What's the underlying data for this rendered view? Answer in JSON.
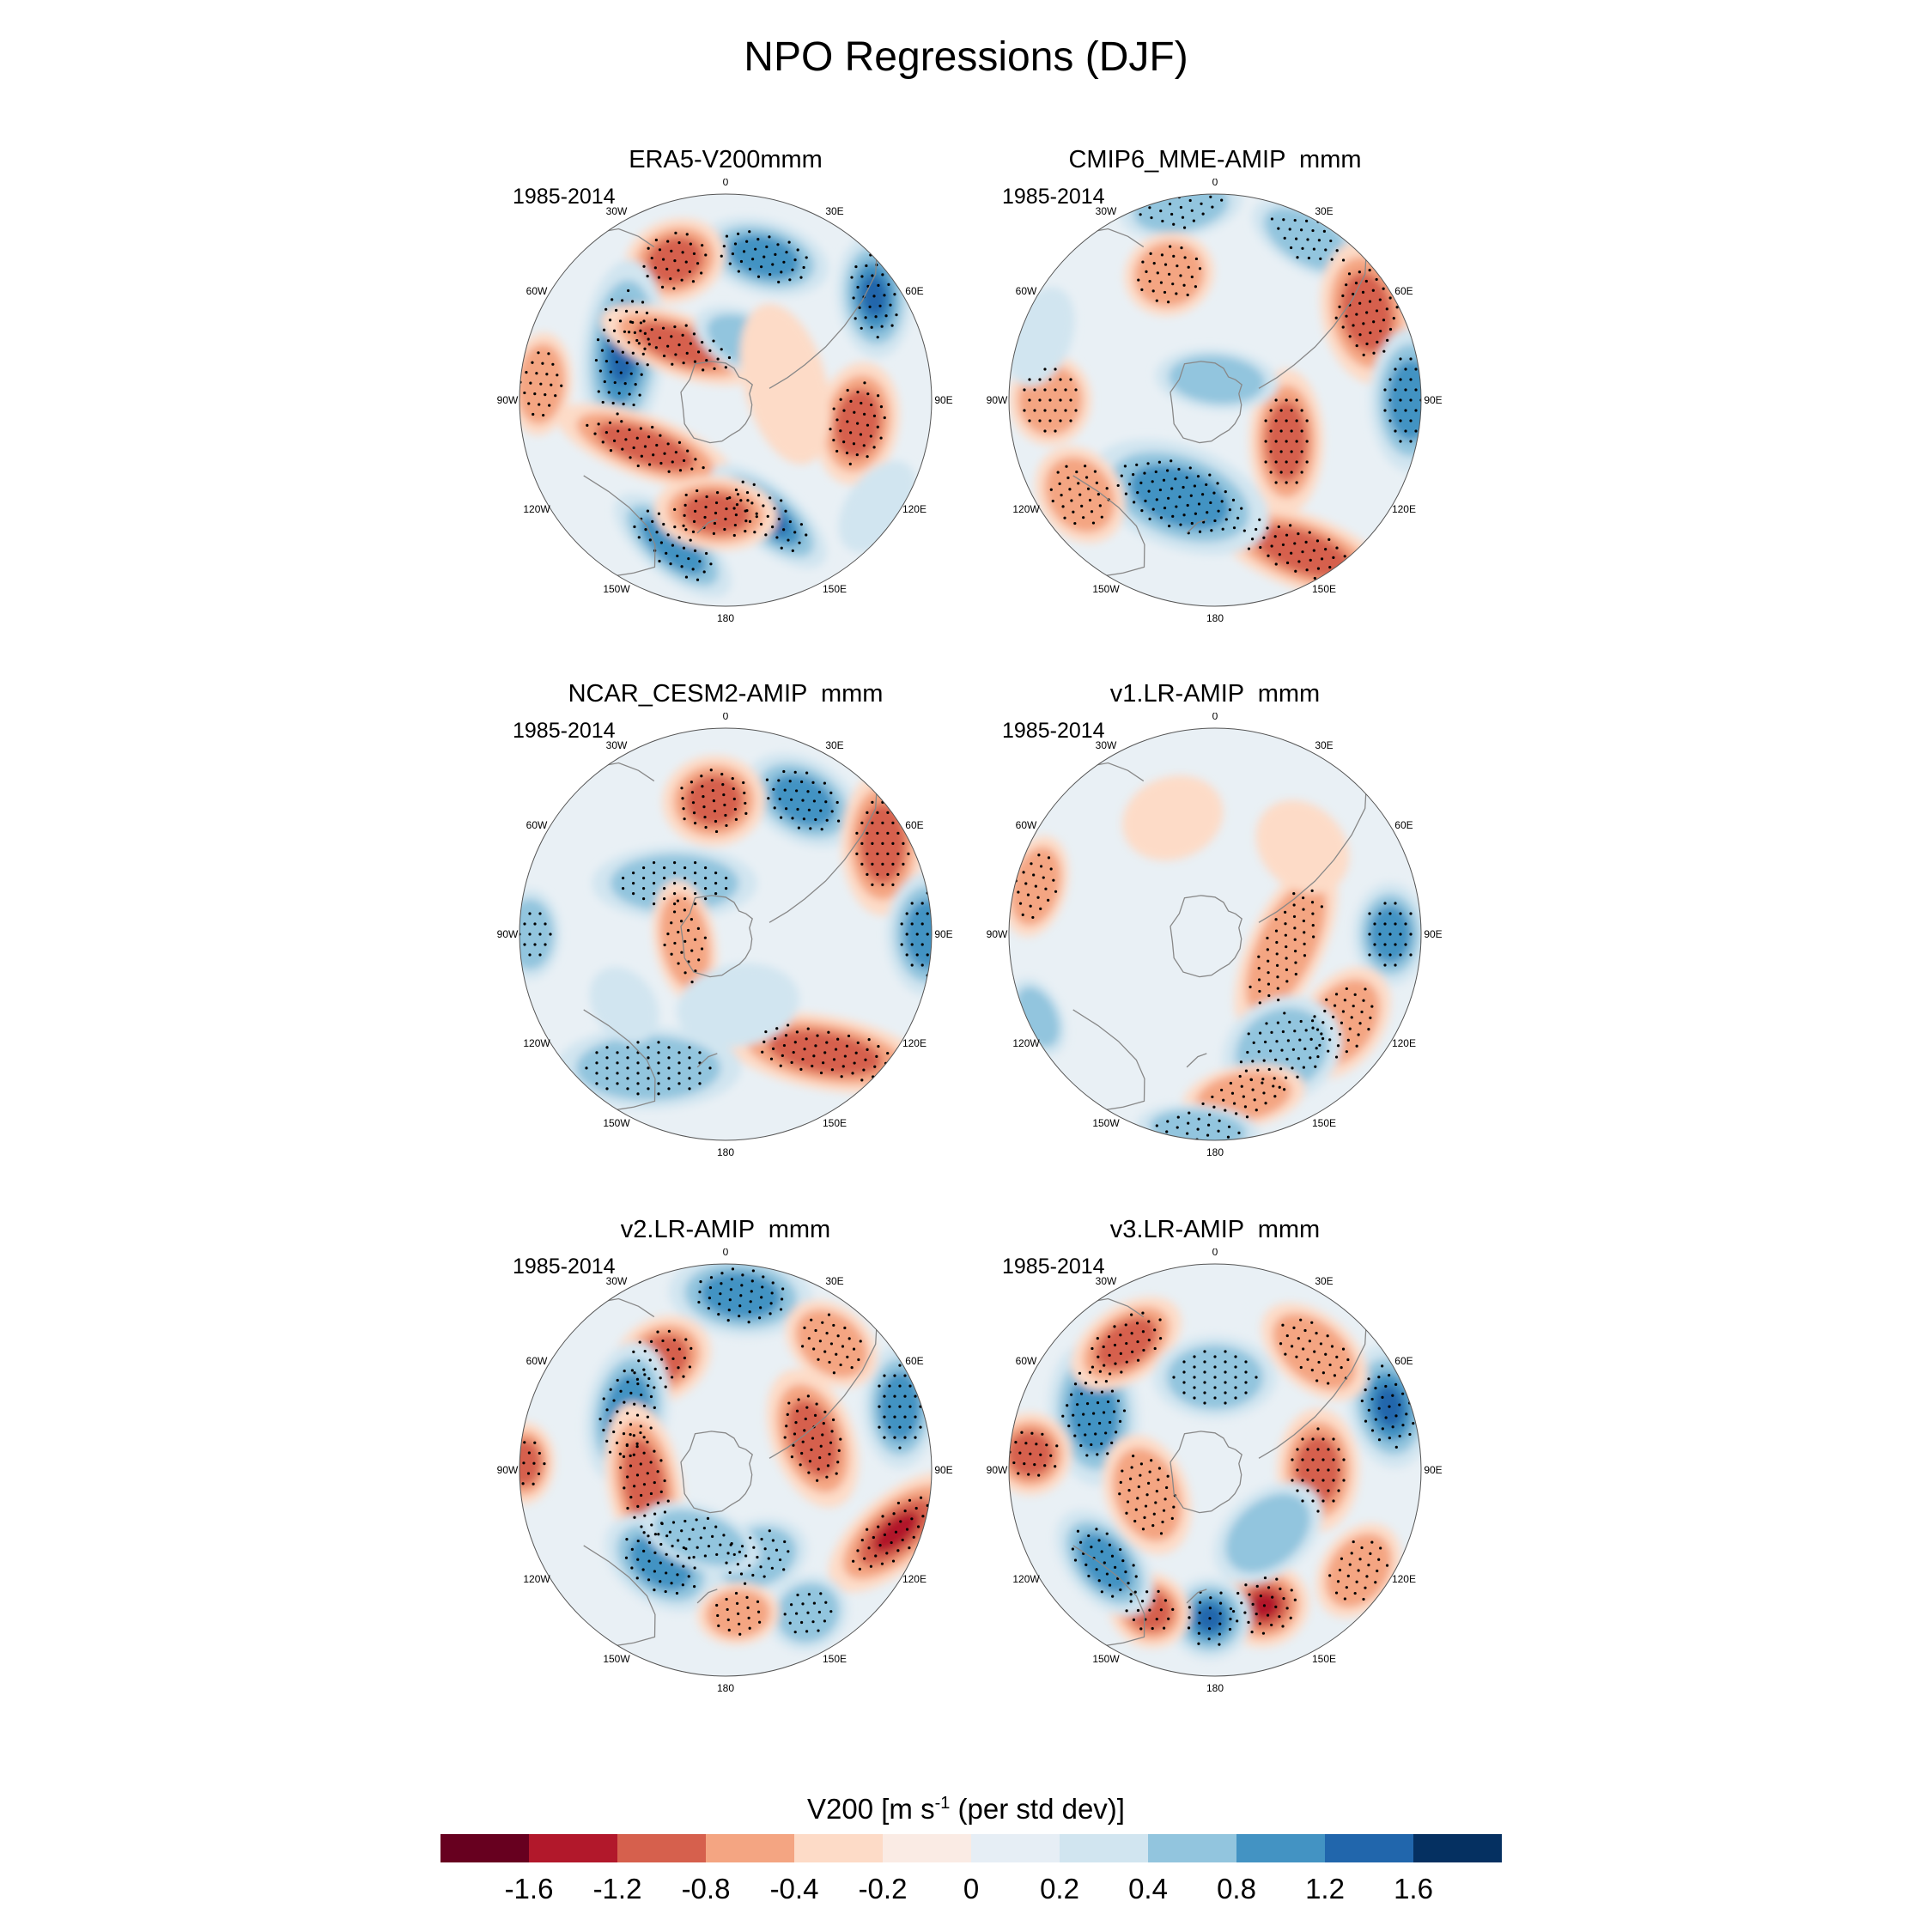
{
  "title": "NPO Regressions (DJF)",
  "period": "1985-2014",
  "lon_labels": [
    "0",
    "30E",
    "60E",
    "90E",
    "120E",
    "150E",
    "180",
    "150W",
    "120W",
    "90W",
    "60W",
    "30W"
  ],
  "panels": [
    {
      "title": "ERA5-V200mmm",
      "period": "1985-2014"
    },
    {
      "title": "CMIP6_MME-AMIP  mmm",
      "period": "1985-2014"
    },
    {
      "title": "NCAR_CESM2-AMIP  mmm",
      "period": "1985-2014"
    },
    {
      "title": "v1.LR-AMIP  mmm",
      "period": "1985-2014"
    },
    {
      "title": "v2.LR-AMIP  mmm",
      "period": "1985-2014"
    },
    {
      "title": "v3.LR-AMIP  mmm",
      "period": "1985-2014"
    }
  ],
  "colorbar": {
    "label_main": "V200 [m s",
    "label_sup": "-1",
    "label_tail": " (per std dev)]",
    "colors": [
      "#67001f",
      "#b2182b",
      "#d6604d",
      "#f4a582",
      "#fddbc7",
      "#faebe4",
      "#e6eef5",
      "#d1e5f0",
      "#92c5de",
      "#4393c3",
      "#2166ac",
      "#053061"
    ],
    "ticks": [
      "-1.6",
      "-1.2",
      "-0.8",
      "-0.4",
      "-0.2",
      "0",
      "0.2",
      "0.4",
      "0.8",
      "1.2",
      "1.6"
    ]
  },
  "colors": {
    "strong_red": "#b2182b",
    "red": "#d6604d",
    "light_red": "#f4a582",
    "pale_red": "#fddbc7",
    "pale_blue": "#d1e5f0",
    "light_blue": "#92c5de",
    "blue": "#4393c3",
    "strong_blue": "#2166ac",
    "ocean_base": "#e9f0f5",
    "coast": "#888888"
  },
  "anomalies": [
    [
      {
        "lon": -15,
        "r": 0.72,
        "a": 0.32,
        "b": 0.18,
        "rot": 0,
        "v": -1.0
      },
      {
        "lon": 20,
        "r": 0.72,
        "a": 0.25,
        "b": 0.2,
        "rot": 0,
        "v": 1.1
      },
      {
        "lon": -55,
        "r": 0.88,
        "a": 0.3,
        "b": 0.18,
        "rot": 30,
        "v": -1.2
      },
      {
        "lon": 65,
        "r": 0.55,
        "a": 0.45,
        "b": 0.2,
        "rot": -20,
        "v": -1.3
      },
      {
        "lon": -100,
        "r": 0.65,
        "a": 0.3,
        "b": 0.2,
        "rot": 0,
        "v": 0.9
      },
      {
        "lon": 120,
        "r": 0.45,
        "a": 0.45,
        "b": 0.15,
        "rot": -40,
        "v": 0.9
      },
      {
        "lon": -160,
        "r": 0.6,
        "a": 0.35,
        "b": 0.15,
        "rot": 60,
        "v": -1.2
      },
      {
        "lon": 160,
        "r": 0.75,
        "a": 0.35,
        "b": 0.15,
        "rot": 20,
        "v": -1.0
      },
      {
        "lon": 175,
        "r": 0.55,
        "a": 0.3,
        "b": 0.18,
        "rot": 0,
        "v": 0.8
      },
      {
        "lon": 40,
        "r": 0.35,
        "a": 0.4,
        "b": 0.15,
        "rot": 60,
        "v": 1.1
      },
      {
        "lon": -25,
        "r": 0.3,
        "a": 0.3,
        "b": 0.15,
        "rot": 0,
        "v": -0.4
      },
      {
        "lon": -75,
        "r": 0.3,
        "a": 0.4,
        "b": 0.2,
        "rot": 0,
        "v": 0.3
      },
      {
        "lon": 85,
        "r": 0.9,
        "a": 0.25,
        "b": 0.15,
        "rot": 0,
        "v": 0.6
      },
      {
        "lon": -125,
        "r": 0.9,
        "a": 0.25,
        "b": 0.15,
        "rot": 0,
        "v": -0.3
      }
    ],
    [
      {
        "lon": -30,
        "r": 0.9,
        "a": 0.3,
        "b": 0.15,
        "rot": 0,
        "v": -0.6
      },
      {
        "lon": 10,
        "r": 0.95,
        "a": 0.3,
        "b": 0.15,
        "rot": 0,
        "v": -0.5
      },
      {
        "lon": 20,
        "r": 0.65,
        "a": 0.22,
        "b": 0.2,
        "rot": 0,
        "v": 0.5
      },
      {
        "lon": -60,
        "r": 0.85,
        "a": 0.35,
        "b": 0.22,
        "rot": 20,
        "v": 1.0
      },
      {
        "lon": -90,
        "r": 0.95,
        "a": 0.35,
        "b": 0.2,
        "rot": 0,
        "v": -0.9
      },
      {
        "lon": -120,
        "r": 0.4,
        "a": 0.35,
        "b": 0.18,
        "rot": -30,
        "v": 0.9
      },
      {
        "lon": -150,
        "r": 0.85,
        "a": 0.45,
        "b": 0.18,
        "rot": 50,
        "v": 1.0
      },
      {
        "lon": 160,
        "r": 0.5,
        "a": 0.45,
        "b": 0.25,
        "rot": 0,
        "v": -0.8
      },
      {
        "lon": 125,
        "r": 0.8,
        "a": 0.25,
        "b": 0.2,
        "rot": 0,
        "v": 0.6
      },
      {
        "lon": 90,
        "r": 0.8,
        "a": 0.22,
        "b": 0.2,
        "rot": 0,
        "v": 0.5
      },
      {
        "lon": -5,
        "r": 0.1,
        "a": 0.3,
        "b": 0.15,
        "rot": 0,
        "v": -0.4
      },
      {
        "lon": 70,
        "r": 0.9,
        "a": 0.25,
        "b": 0.15,
        "rot": 0,
        "v": -0.3
      }
    ],
    [
      {
        "lon": -30,
        "r": 0.75,
        "a": 0.3,
        "b": 0.2,
        "rot": 0,
        "v": -0.8
      },
      {
        "lon": 5,
        "r": 0.65,
        "a": 0.25,
        "b": 0.22,
        "rot": 0,
        "v": 0.8
      },
      {
        "lon": -60,
        "r": 0.88,
        "a": 0.35,
        "b": 0.2,
        "rot": 30,
        "v": 0.8
      },
      {
        "lon": -90,
        "r": 0.98,
        "a": 0.3,
        "b": 0.2,
        "rot": 0,
        "v": -0.9
      },
      {
        "lon": 45,
        "r": 0.35,
        "a": 0.4,
        "b": 0.18,
        "rot": 45,
        "v": -0.6
      },
      {
        "lon": 100,
        "r": 0.2,
        "a": 0.3,
        "b": 0.15,
        "rot": 0,
        "v": 0.6
      },
      {
        "lon": -140,
        "r": 0.75,
        "a": 0.5,
        "b": 0.18,
        "rot": 50,
        "v": 0.8
      },
      {
        "lon": 150,
        "r": 0.75,
        "a": 0.45,
        "b": 0.2,
        "rot": -30,
        "v": -0.5
      },
      {
        "lon": 90,
        "r": 0.95,
        "a": 0.22,
        "b": 0.15,
        "rot": 0,
        "v": -0.5
      },
      {
        "lon": -170,
        "r": 0.35,
        "a": 0.3,
        "b": 0.2,
        "rot": 0,
        "v": -0.3
      },
      {
        "lon": 125,
        "r": 0.6,
        "a": 0.2,
        "b": 0.15,
        "rot": 0,
        "v": -0.3
      }
    ],
    [
      {
        "lon": -90,
        "r": 0.85,
        "a": 0.25,
        "b": 0.18,
        "rot": 0,
        "v": -0.9
      },
      {
        "lon": -100,
        "r": 0.35,
        "a": 0.45,
        "b": 0.18,
        "rot": 15,
        "v": 0.7
      },
      {
        "lon": -125,
        "r": 0.75,
        "a": 0.3,
        "b": 0.2,
        "rot": 0,
        "v": 0.6
      },
      {
        "lon": -150,
        "r": 0.65,
        "a": 0.3,
        "b": 0.25,
        "rot": 0,
        "v": -0.7
      },
      {
        "lon": -170,
        "r": 0.8,
        "a": 0.3,
        "b": 0.15,
        "rot": 0,
        "v": 0.6
      },
      {
        "lon": 175,
        "r": 0.95,
        "a": 0.3,
        "b": 0.12,
        "rot": 0,
        "v": -0.5
      },
      {
        "lon": 75,
        "r": 0.9,
        "a": 0.25,
        "b": 0.15,
        "rot": 0,
        "v": 0.6
      },
      {
        "lon": 20,
        "r": 0.6,
        "a": 0.25,
        "b": 0.2,
        "rot": 0,
        "v": 0.3
      },
      {
        "lon": -45,
        "r": 0.6,
        "a": 0.25,
        "b": 0.2,
        "rot": 0,
        "v": 0.3
      },
      {
        "lon": 115,
        "r": 0.95,
        "a": 0.2,
        "b": 0.12,
        "rot": 0,
        "v": -0.4
      }
    ],
    [
      {
        "lon": -5,
        "r": 0.85,
        "a": 0.35,
        "b": 0.2,
        "rot": 0,
        "v": -0.8
      },
      {
        "lon": 30,
        "r": 0.62,
        "a": 0.25,
        "b": 0.2,
        "rot": 0,
        "v": 0.8
      },
      {
        "lon": -70,
        "r": 0.9,
        "a": 0.3,
        "b": 0.18,
        "rot": 20,
        "v": -1.0
      },
      {
        "lon": -110,
        "r": 0.88,
        "a": 0.4,
        "b": 0.18,
        "rot": 30,
        "v": 1.3
      },
      {
        "lon": -70,
        "r": 0.45,
        "a": 0.35,
        "b": 0.2,
        "rot": 0,
        "v": 0.9
      },
      {
        "lon": 60,
        "r": 0.55,
        "a": 0.35,
        "b": 0.2,
        "rot": -20,
        "v": -0.9
      },
      {
        "lon": 100,
        "r": 0.4,
        "a": 0.4,
        "b": 0.18,
        "rot": 0,
        "v": 0.9
      },
      {
        "lon": 145,
        "r": 0.55,
        "a": 0.3,
        "b": 0.2,
        "rot": 0,
        "v": -0.9
      },
      {
        "lon": -160,
        "r": 0.45,
        "a": 0.25,
        "b": 0.18,
        "rot": 0,
        "v": -0.5
      },
      {
        "lon": -150,
        "r": 0.8,
        "a": 0.2,
        "b": 0.18,
        "rot": 0,
        "v": -0.5
      },
      {
        "lon": -175,
        "r": 0.7,
        "a": 0.2,
        "b": 0.15,
        "rot": 0,
        "v": 0.6
      },
      {
        "lon": 160,
        "r": 0.35,
        "a": 0.3,
        "b": 0.15,
        "rot": 0,
        "v": -0.5
      },
      {
        "lon": -40,
        "r": 0.8,
        "a": 0.25,
        "b": 0.18,
        "rot": 0,
        "v": 0.6
      },
      {
        "lon": 88,
        "r": 0.98,
        "a": 0.2,
        "b": 0.15,
        "rot": 0,
        "v": 0.9
      }
    ],
    [
      {
        "lon": -70,
        "r": 0.9,
        "a": 0.3,
        "b": 0.2,
        "rot": 10,
        "v": -1.5
      },
      {
        "lon": -90,
        "r": 0.5,
        "a": 0.3,
        "b": 0.2,
        "rot": 0,
        "v": 0.8
      },
      {
        "lon": -160,
        "r": 0.7,
        "a": 0.22,
        "b": 0.2,
        "rot": 0,
        "v": 1.6
      },
      {
        "lon": 178,
        "r": 0.72,
        "a": 0.2,
        "b": 0.2,
        "rot": 0,
        "v": -1.6
      },
      {
        "lon": 155,
        "r": 0.75,
        "a": 0.2,
        "b": 0.18,
        "rot": 0,
        "v": 1.1
      },
      {
        "lon": 130,
        "r": 0.7,
        "a": 0.3,
        "b": 0.18,
        "rot": 0,
        "v": -0.8
      },
      {
        "lon": 65,
        "r": 0.65,
        "a": 0.35,
        "b": 0.22,
        "rot": -30,
        "v": -1.0
      },
      {
        "lon": 35,
        "r": 0.75,
        "a": 0.3,
        "b": 0.18,
        "rot": 0,
        "v": 1.0
      },
      {
        "lon": 0,
        "r": 0.45,
        "a": 0.3,
        "b": 0.2,
        "rot": 0,
        "v": -0.6
      },
      {
        "lon": -40,
        "r": 0.75,
        "a": 0.3,
        "b": 0.18,
        "rot": 0,
        "v": 0.6
      },
      {
        "lon": 110,
        "r": 0.35,
        "a": 0.3,
        "b": 0.2,
        "rot": 0,
        "v": 0.6
      },
      {
        "lon": -125,
        "r": 0.85,
        "a": 0.25,
        "b": 0.18,
        "rot": 0,
        "v": 0.6
      },
      {
        "lon": -140,
        "r": 0.4,
        "a": 0.3,
        "b": 0.2,
        "rot": 0,
        "v": -0.4
      },
      {
        "lon": 85,
        "r": 0.9,
        "a": 0.2,
        "b": 0.2,
        "rot": 0,
        "v": 0.9
      }
    ]
  ]
}
